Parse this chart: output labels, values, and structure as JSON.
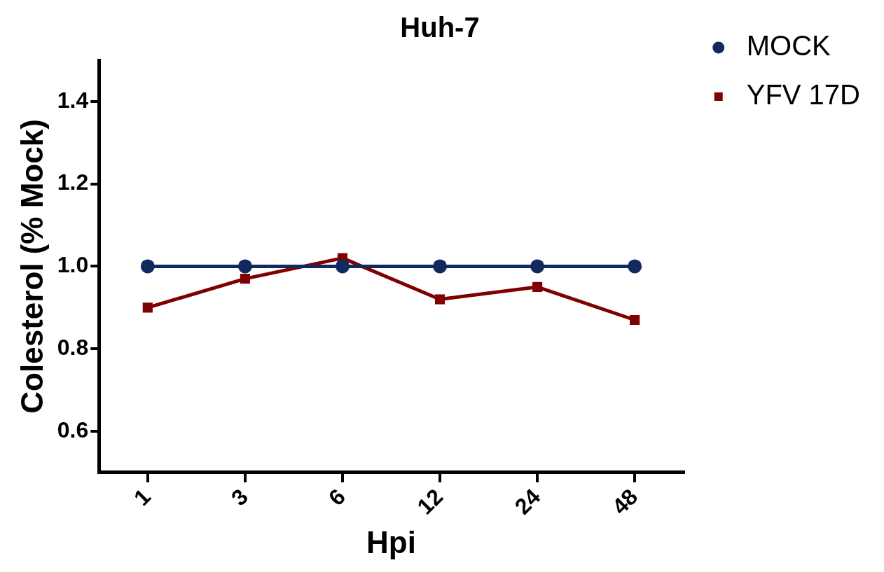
{
  "chart_data": {
    "type": "line",
    "title": "Huh-7",
    "xlabel": "Hpi",
    "ylabel": "Colesterol (% Mock)",
    "categories": [
      "1",
      "3",
      "6",
      "12",
      "24",
      "48"
    ],
    "series": [
      {
        "name": "MOCK",
        "color": "#112a5e",
        "marker": "circle",
        "values": [
          1.0,
          1.0,
          1.0,
          1.0,
          1.0,
          1.0
        ]
      },
      {
        "name": "YFV 17D",
        "color": "#7f0000",
        "marker": "square",
        "values": [
          0.9,
          0.97,
          1.02,
          0.92,
          0.95,
          0.87
        ]
      }
    ],
    "ylim": [
      0.5,
      1.5
    ],
    "yticks": [
      {
        "value": 0.6,
        "label": "0.6"
      },
      {
        "value": 0.8,
        "label": "0.8"
      },
      {
        "value": 1.0,
        "label": "1.0"
      },
      {
        "value": 1.2,
        "label": "1.2"
      },
      {
        "value": 1.4,
        "label": "1.4"
      }
    ],
    "grid": false,
    "legend": "top right",
    "line_style": "solid"
  }
}
